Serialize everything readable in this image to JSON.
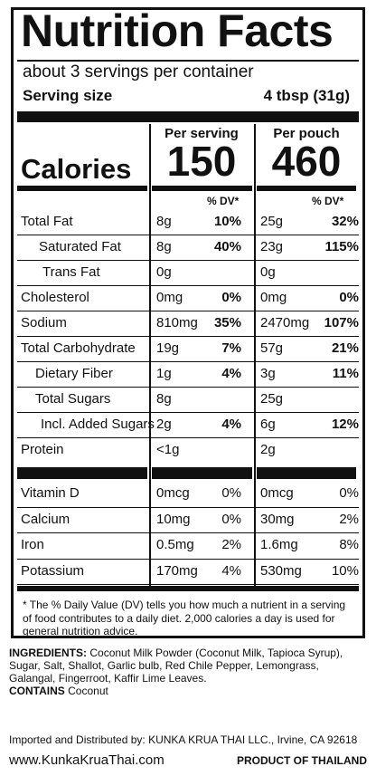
{
  "title": "Nutrition Facts",
  "servings": "about 3 servings per container",
  "serving_size_label": "Serving size",
  "serving_size_value": "4 tbsp (31g)",
  "col1_header": "Per serving",
  "col2_header": "Per pouch",
  "calories_label": "Calories",
  "calories_serving": "150",
  "calories_pouch": "460",
  "dv_header": "% DV*",
  "nutrients": [
    {
      "label": "Total Fat",
      "a": "8g",
      "ad": "10%",
      "b": "25g",
      "bd": "32%"
    },
    {
      "label": "Saturated Fat",
      "a": "8g",
      "ad": "40%",
      "b": "23g",
      "bd": "115%"
    },
    {
      "label": "Trans Fat",
      "a": "0g",
      "ad": "",
      "b": "0g",
      "bd": ""
    },
    {
      "label": "Cholesterol",
      "a": "0mg",
      "ad": "0%",
      "b": "0mg",
      "bd": "0%"
    },
    {
      "label": "Sodium",
      "a": "810mg",
      "ad": "35%",
      "b": "2470mg",
      "bd": "107%"
    },
    {
      "label": "Total Carbohydrate",
      "a": "19g",
      "ad": "7%",
      "b": "57g",
      "bd": "21%"
    },
    {
      "label": "Dietary Fiber",
      "a": "1g",
      "ad": "4%",
      "b": "3g",
      "bd": "11%"
    },
    {
      "label": "Total Sugars",
      "a": "8g",
      "ad": "",
      "b": "25g",
      "bd": ""
    },
    {
      "label": "Incl. Added Sugars",
      "a": "2g",
      "ad": "4%",
      "b": "6g",
      "bd": "12%"
    },
    {
      "label": "Protein",
      "a": "<1g",
      "ad": "",
      "b": "2g",
      "bd": ""
    }
  ],
  "vitamins": [
    {
      "label": "Vitamin D",
      "a": "0mcg",
      "ad": "0%",
      "b": "0mcg",
      "bd": "0%"
    },
    {
      "label": "Calcium",
      "a": "10mg",
      "ad": "0%",
      "b": "30mg",
      "bd": "2%"
    },
    {
      "label": "Iron",
      "a": "0.5mg",
      "ad": "2%",
      "b": "1.6mg",
      "bd": "8%"
    },
    {
      "label": "Potassium",
      "a": "170mg",
      "ad": "4%",
      "b": "530mg",
      "bd": "10%"
    }
  ],
  "footnote": "* The % Daily Value (DV) tells you how much a nutrient in a serving of food contributes to a daily diet. 2,000 calories a day is used for general nutrition advice.",
  "ingredients_label": "INGREDIENTS:",
  "ingredients_text": "Coconut Milk Powder (Coconut Milk, Tapioca Syrup), Sugar, Salt, Shallot, Garlic bulb, Red Chile Pepper, Lemongrass, Galangal, Fingerroot, Kaffir Lime Leaves.",
  "contains_label": "CONTAINS",
  "contains_text": "Coconut",
  "importer": "Imported and Distributed by: KUNKA KRUA THAI LLC., Irvine, CA 92618",
  "website": "www.KunkaKruaThai.com",
  "origin": "PRODUCT OF THAILAND"
}
